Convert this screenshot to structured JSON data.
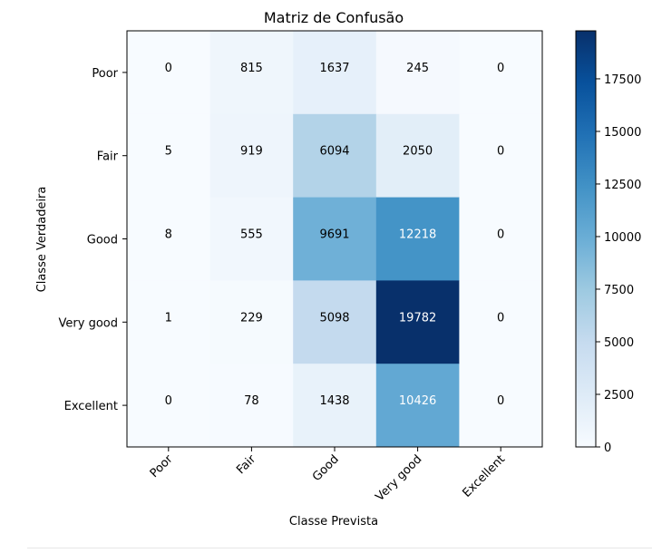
{
  "chart_data": {
    "type": "heatmap",
    "title": "Matriz de Confusão",
    "xlabel": "Classe Prevista",
    "ylabel": "Classe Verdadeira",
    "x_categories": [
      "Poor",
      "Fair",
      "Good",
      "Very good",
      "Excellent"
    ],
    "y_categories": [
      "Poor",
      "Fair",
      "Good",
      "Very good",
      "Excellent"
    ],
    "values": [
      [
        0,
        815,
        1637,
        245,
        0
      ],
      [
        5,
        919,
        6094,
        2050,
        0
      ],
      [
        8,
        555,
        9691,
        12218,
        0
      ],
      [
        1,
        229,
        5098,
        19782,
        0
      ],
      [
        0,
        78,
        1438,
        10426,
        0
      ]
    ],
    "colormap": "Blues",
    "color_range": [
      0,
      19782
    ],
    "colorbar_ticks": [
      "0",
      "2500",
      "5000",
      "7500",
      "10000",
      "12500",
      "15000",
      "17500"
    ],
    "colorbar_tick_values": [
      0,
      2500,
      5000,
      7500,
      10000,
      12500,
      15000,
      17500
    ],
    "legend": "colorbar-right",
    "grid": false
  }
}
